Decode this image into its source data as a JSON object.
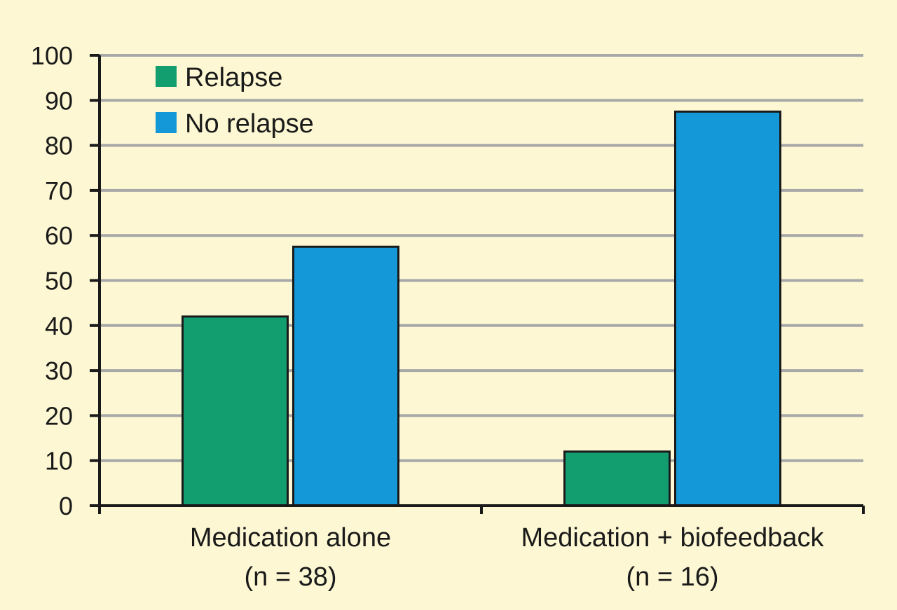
{
  "chart_data": {
    "type": "bar",
    "title": "",
    "xlabel": "",
    "ylabel": "",
    "ylim": [
      0,
      100
    ],
    "yticks": [
      0,
      10,
      20,
      30,
      40,
      50,
      60,
      70,
      80,
      90,
      100
    ],
    "grid": true,
    "legend_position": "top-left",
    "categories": [
      [
        "Medication alone",
        "(n = 38)"
      ],
      [
        "Medication + biofeedback",
        "(n = 16)"
      ]
    ],
    "series": [
      {
        "name": "Relapse",
        "color": "#139e6f",
        "values": [
          42,
          12
        ]
      },
      {
        "name": "No relapse",
        "color": "#1598d8",
        "values": [
          57.5,
          87.5
        ]
      }
    ]
  },
  "colors": {
    "background": "#fdf8d3",
    "gridline": "#a8a8a8",
    "axis": "#1a1a1a"
  }
}
